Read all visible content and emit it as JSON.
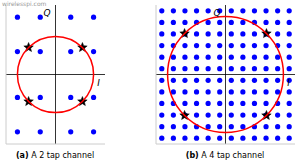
{
  "chart_data": [
    {
      "type": "scatter",
      "title": "(a) A 2 tap channel",
      "watermark": "wirelesspi.com",
      "xlabel": "I",
      "ylabel": "Q",
      "xlim": [
        -1.3,
        1.3
      ],
      "ylim": [
        -1.82,
        1.82
      ],
      "tick_labels": false,
      "circle": {
        "center": [
          0,
          0
        ],
        "radius": 1,
        "color": "#ff0000"
      },
      "series": [
        {
          "color": "#0000ff",
          "marker": "circle",
          "x": [
            -1.0,
            -0.4,
            -1.0,
            -0.4,
            0.4,
            1.0,
            0.4,
            1.0,
            -1.0,
            -0.4,
            -1.0,
            -0.4,
            0.4,
            1.0,
            0.4,
            1.0
          ],
          "y": [
            1.5,
            1.5,
            0.6,
            0.6,
            1.5,
            1.5,
            0.6,
            0.6,
            -0.6,
            -0.6,
            -1.5,
            -1.5,
            -0.6,
            -0.6,
            -1.5,
            -1.5
          ]
        },
        {
          "color": "#000000",
          "marker": "star",
          "x": [
            -0.707,
            0.707,
            -0.707,
            0.707
          ],
          "y": [
            0.707,
            0.707,
            -0.707,
            -0.707
          ]
        }
      ]
    },
    {
      "type": "scatter",
      "title": "(b) A 4 tap channel",
      "xlabel": "I",
      "ylabel": "Q",
      "xlim": [
        -1.2,
        1.2
      ],
      "ylim": [
        -1.2,
        1.2
      ],
      "tick_labels": false,
      "circle": {
        "center": [
          0,
          0
        ],
        "radius": 1,
        "color": "#ff0000"
      },
      "series": [
        {
          "color": "#0000ff",
          "marker": "circle",
          "x": [
            -1.1,
            -0.9,
            -0.7,
            -0.5,
            -0.3,
            -0.1,
            0.1,
            0.3,
            0.5,
            0.7,
            0.9,
            1.1,
            -1.1,
            -0.9,
            -0.7,
            -0.5,
            -0.3,
            -0.1,
            0.1,
            0.3,
            0.5,
            0.7,
            0.9,
            1.1,
            -1.1,
            -0.9,
            -0.7,
            -0.5,
            -0.3,
            -0.1,
            0.1,
            0.3,
            0.5,
            0.7,
            0.9,
            1.1,
            -1.1,
            -0.9,
            -0.7,
            -0.5,
            -0.3,
            -0.1,
            0.1,
            0.3,
            0.5,
            0.7,
            0.9,
            1.1,
            -1.1,
            -0.9,
            -0.7,
            -0.5,
            -0.3,
            -0.1,
            0.1,
            0.3,
            0.5,
            0.7,
            0.9,
            1.1,
            -1.1,
            -0.9,
            -0.7,
            -0.5,
            -0.3,
            -0.1,
            0.1,
            0.3,
            0.5,
            0.7,
            0.9,
            1.1,
            -1.1,
            -0.9,
            -0.7,
            -0.5,
            -0.3,
            -0.1,
            0.1,
            0.3,
            0.5,
            0.7,
            0.9,
            1.1,
            -1.1,
            -0.9,
            -0.7,
            -0.5,
            -0.3,
            -0.1,
            0.1,
            0.3,
            0.5,
            0.7,
            0.9,
            1.1,
            -1.1,
            -0.9,
            -0.7,
            -0.5,
            -0.3,
            -0.1,
            0.1,
            0.3,
            0.5,
            0.7,
            0.9,
            1.1,
            -1.1,
            -0.9,
            -0.7,
            -0.5,
            -0.3,
            -0.1,
            0.1,
            0.3,
            0.5,
            0.7,
            0.9,
            1.1,
            -1.1,
            -0.9,
            -0.7,
            -0.5,
            -0.3,
            -0.1,
            0.1,
            0.3,
            0.5,
            0.7,
            0.9,
            1.1,
            -1.1,
            -0.9,
            -0.7,
            -0.5,
            -0.3,
            -0.1,
            0.1,
            0.3,
            0.5,
            0.7,
            0.9,
            1.1
          ],
          "y": [
            1.1,
            1.1,
            1.1,
            1.1,
            1.1,
            1.1,
            1.1,
            1.1,
            1.1,
            1.1,
            1.1,
            1.1,
            0.9,
            0.9,
            0.9,
            0.9,
            0.9,
            0.9,
            0.9,
            0.9,
            0.9,
            0.9,
            0.9,
            0.9,
            0.7,
            0.7,
            0.7,
            0.7,
            0.7,
            0.7,
            0.7,
            0.7,
            0.7,
            0.7,
            0.7,
            0.7,
            0.5,
            0.5,
            0.5,
            0.5,
            0.5,
            0.5,
            0.5,
            0.5,
            0.5,
            0.5,
            0.5,
            0.5,
            0.3,
            0.3,
            0.3,
            0.3,
            0.3,
            0.3,
            0.3,
            0.3,
            0.3,
            0.3,
            0.3,
            0.3,
            0.1,
            0.1,
            0.1,
            0.1,
            0.1,
            0.1,
            0.1,
            0.1,
            0.1,
            0.1,
            0.1,
            0.1,
            -0.1,
            -0.1,
            -0.1,
            -0.1,
            -0.1,
            -0.1,
            -0.1,
            -0.1,
            -0.1,
            -0.1,
            -0.1,
            -0.1,
            -0.3,
            -0.3,
            -0.3,
            -0.3,
            -0.3,
            -0.3,
            -0.3,
            -0.3,
            -0.3,
            -0.3,
            -0.3,
            -0.3,
            -0.5,
            -0.5,
            -0.5,
            -0.5,
            -0.5,
            -0.5,
            -0.5,
            -0.5,
            -0.5,
            -0.5,
            -0.5,
            -0.5,
            -0.7,
            -0.7,
            -0.7,
            -0.7,
            -0.7,
            -0.7,
            -0.7,
            -0.7,
            -0.7,
            -0.7,
            -0.7,
            -0.7,
            -0.9,
            -0.9,
            -0.9,
            -0.9,
            -0.9,
            -0.9,
            -0.9,
            -0.9,
            -0.9,
            -0.9,
            -0.9,
            -0.9,
            -1.1,
            -1.1,
            -1.1,
            -1.1,
            -1.1,
            -1.1,
            -1.1,
            -1.1,
            -1.1,
            -1.1,
            -1.1,
            -1.1
          ]
        },
        {
          "color": "#000000",
          "marker": "star",
          "x": [
            -0.707,
            0.707,
            -0.707,
            0.707
          ],
          "y": [
            0.707,
            0.707,
            -0.707,
            -0.707
          ]
        }
      ]
    }
  ]
}
